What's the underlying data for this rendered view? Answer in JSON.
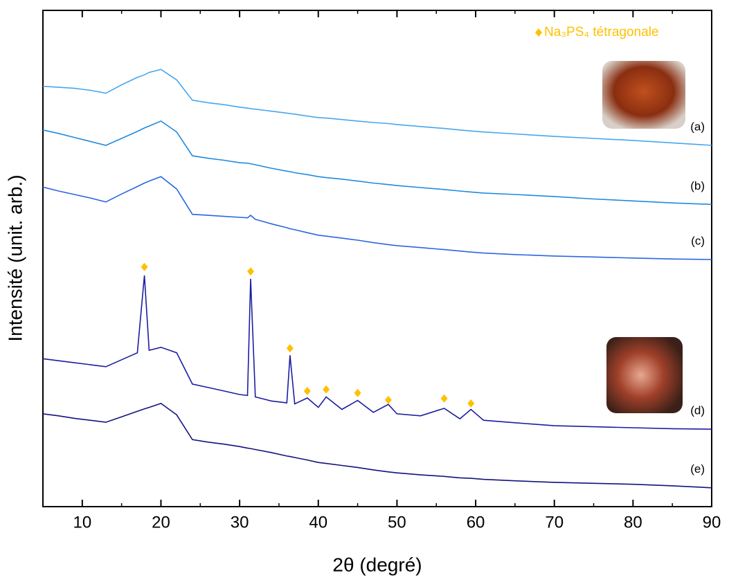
{
  "chart_data": {
    "type": "line",
    "x_label": "2θ (degré)",
    "y_label": "Intensité (unit. arb.)",
    "xlim": [
      5,
      90
    ],
    "ylim": [
      0,
      100
    ],
    "xticks": [
      10,
      20,
      30,
      40,
      50,
      60,
      70,
      80,
      90
    ],
    "xminorticks": [
      15,
      25,
      35,
      45,
      55,
      65,
      75,
      85
    ],
    "x": [
      5,
      7,
      9,
      11,
      13,
      15,
      17,
      17.9,
      18.5,
      20,
      22,
      24,
      26,
      28,
      30,
      31,
      31.4,
      32,
      34,
      36,
      36.4,
      37,
      38.6,
      40,
      41,
      43,
      45,
      47,
      48.9,
      50,
      53,
      56,
      58,
      59.4,
      61,
      65,
      70,
      75,
      80,
      85,
      90
    ],
    "series": [
      {
        "name": "(a)",
        "color": "#46a6ee",
        "values": [
          84.7,
          84.5,
          84.3,
          83.9,
          83.3,
          85,
          86.5,
          87,
          87.5,
          88.1,
          86,
          81.9,
          81.4,
          81,
          80.5,
          80.3,
          80.2,
          80.1,
          79.7,
          79.3,
          79.2,
          79.1,
          78.7,
          78.4,
          78.3,
          78,
          77.7,
          77.4,
          77.2,
          77,
          76.6,
          76.2,
          75.9,
          75.7,
          75.5,
          75.1,
          74.6,
          74.2,
          73.8,
          73.3,
          72.8
        ]
      },
      {
        "name": "(b)",
        "color": "#1f8ae0",
        "values": [
          75.9,
          75.2,
          74.4,
          73.6,
          72.8,
          74.2,
          75.6,
          76.3,
          76.7,
          77.7,
          75.5,
          70.7,
          70.2,
          69.8,
          69.3,
          69.2,
          69.1,
          68.9,
          68.2,
          67.6,
          67.5,
          67.3,
          66.9,
          66.5,
          66.3,
          66,
          65.6,
          65.2,
          64.9,
          64.7,
          64.3,
          63.9,
          63.6,
          63.4,
          63.2,
          62.9,
          62.5,
          62,
          61.6,
          61.2,
          60.9
        ]
      },
      {
        "name": "(c)",
        "color": "#2a66e0",
        "values": [
          64.4,
          63.6,
          62.9,
          62.2,
          61.4,
          63,
          64.5,
          65.2,
          65.6,
          66.5,
          64,
          58.9,
          58.7,
          58.5,
          58.3,
          58.2,
          58.7,
          57.9,
          57,
          56.2,
          56,
          55.8,
          55.2,
          54.7,
          54.5,
          54.1,
          53.7,
          53.2,
          52.8,
          52.6,
          52.2,
          51.8,
          51.5,
          51.3,
          51.1,
          50.8,
          50.5,
          50.3,
          50.1,
          49.9,
          49.8
        ]
      },
      {
        "name": "(d)",
        "color": "#1c1ca0",
        "values": [
          29.8,
          29.4,
          29,
          28.6,
          28.2,
          29.6,
          31,
          46.6,
          31.5,
          32.1,
          31,
          24.7,
          24,
          23.3,
          22.6,
          22.4,
          45.9,
          22.1,
          21.3,
          20.9,
          30.5,
          20.7,
          21.9,
          20,
          22.1,
          19.6,
          21.4,
          19,
          20.6,
          18.7,
          18.3,
          19.8,
          17.7,
          19.6,
          17.4,
          16.9,
          16.3,
          16.1,
          15.9,
          15.7,
          15.6
        ]
      },
      {
        "name": "(e)",
        "color": "#12127e",
        "values": [
          18.7,
          18.3,
          17.8,
          17.4,
          17,
          18.1,
          19.2,
          19.7,
          20,
          20.8,
          18.5,
          13.5,
          13,
          12.6,
          12.1,
          11.8,
          11.7,
          11.5,
          10.9,
          10.2,
          10.1,
          9.9,
          9.4,
          8.9,
          8.7,
          8.3,
          7.9,
          7.4,
          7,
          6.8,
          6.4,
          6.1,
          5.8,
          5.7,
          5.5,
          5.2,
          4.9,
          4.7,
          4.5,
          4.2,
          3.8
        ]
      }
    ],
    "markers": {
      "name": "Na₃PS₄ tétragonale",
      "color": "#ffc000",
      "x": [
        17.9,
        31.4,
        36.4,
        38.6,
        41,
        45,
        48.9,
        56,
        59.4
      ],
      "y": [
        48.3,
        47.4,
        31.9,
        23.3,
        23.6,
        22.9,
        21.5,
        21.8,
        20.8
      ]
    }
  }
}
